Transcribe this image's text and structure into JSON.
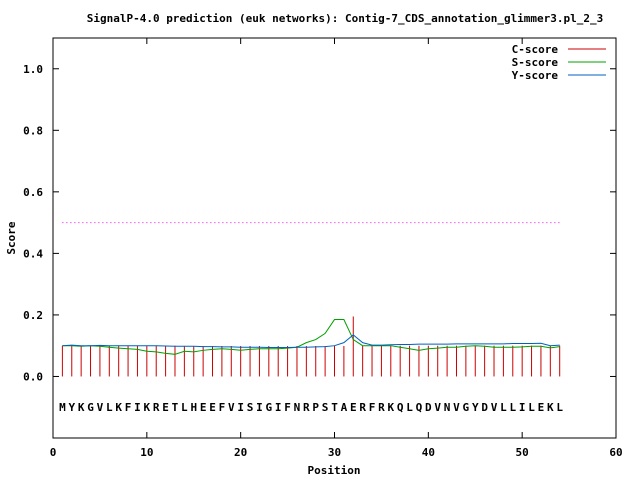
{
  "chart_data": {
    "type": "line",
    "title": "SignalP-4.0 prediction (euk networks): Contig-7_CDS_annotation_glimmer3.pl_2_3",
    "xlabel": "Position",
    "ylabel": "Score",
    "xlim": [
      0,
      60
    ],
    "ylim": [
      -0.2,
      1.1
    ],
    "xticks": [
      0,
      10,
      20,
      30,
      40,
      50,
      60
    ],
    "xtick_labels": [
      "0",
      "10",
      "20",
      "30",
      "40",
      "50",
      "60"
    ],
    "yticks": [
      0.0,
      0.2,
      0.4,
      0.6,
      0.8,
      1.0
    ],
    "ytick_labels": [
      "0.0",
      "0.2",
      "0.4",
      "0.6",
      "0.8",
      "1.0"
    ],
    "legend_position": "top-right",
    "threshold": {
      "value": 0.5,
      "x_range": [
        1,
        54
      ],
      "color": "#ff00ff"
    },
    "sequence": "MYKGVLKFIKRETLHEEFVISIGIFNRPSTAERFRKQLQDVNVGYDVLLILEKL",
    "sequence_y": -0.1,
    "series": [
      {
        "name": "C-score",
        "style": "impulses",
        "color": "#cc0000",
        "x": [
          1,
          2,
          3,
          4,
          5,
          6,
          7,
          8,
          9,
          10,
          11,
          12,
          13,
          14,
          15,
          16,
          17,
          18,
          19,
          20,
          21,
          22,
          23,
          24,
          25,
          26,
          27,
          28,
          29,
          30,
          31,
          32,
          33,
          34,
          35,
          36,
          37,
          38,
          39,
          40,
          41,
          42,
          43,
          44,
          45,
          46,
          47,
          48,
          49,
          50,
          51,
          52,
          53,
          54
        ],
        "values": [
          0.1,
          0.102,
          0.1,
          0.1,
          0.102,
          0.1,
          0.101,
          0.1,
          0.1,
          0.1,
          0.1,
          0.1,
          0.1,
          0.099,
          0.099,
          0.099,
          0.099,
          0.099,
          0.099,
          0.099,
          0.099,
          0.099,
          0.099,
          0.099,
          0.099,
          0.099,
          0.099,
          0.099,
          0.099,
          0.099,
          0.099,
          0.195,
          0.1,
          0.1,
          0.1,
          0.1,
          0.1,
          0.1,
          0.1,
          0.1,
          0.1,
          0.1,
          0.1,
          0.1,
          0.1,
          0.1,
          0.1,
          0.1,
          0.1,
          0.1,
          0.1,
          0.1,
          0.1,
          0.1
        ]
      },
      {
        "name": "S-score",
        "style": "lines",
        "color": "#00a000",
        "x": [
          1,
          2,
          3,
          4,
          5,
          6,
          7,
          8,
          9,
          10,
          11,
          12,
          13,
          14,
          15,
          16,
          17,
          18,
          19,
          20,
          21,
          22,
          23,
          24,
          25,
          26,
          27,
          28,
          29,
          30,
          31,
          32,
          33,
          34,
          35,
          36,
          37,
          38,
          39,
          40,
          41,
          42,
          43,
          44,
          45,
          46,
          47,
          48,
          49,
          50,
          51,
          52,
          53,
          54
        ],
        "values": [
          0.1,
          0.1,
          0.098,
          0.1,
          0.098,
          0.095,
          0.092,
          0.09,
          0.088,
          0.082,
          0.08,
          0.075,
          0.072,
          0.082,
          0.08,
          0.085,
          0.088,
          0.09,
          0.088,
          0.085,
          0.088,
          0.09,
          0.09,
          0.09,
          0.092,
          0.095,
          0.11,
          0.12,
          0.14,
          0.185,
          0.185,
          0.12,
          0.1,
          0.1,
          0.1,
          0.1,
          0.095,
          0.09,
          0.085,
          0.09,
          0.092,
          0.095,
          0.095,
          0.098,
          0.1,
          0.098,
          0.095,
          0.095,
          0.095,
          0.096,
          0.098,
          0.098,
          0.093,
          0.097
        ]
      },
      {
        "name": "Y-score",
        "style": "lines",
        "color": "#0060c0",
        "x": [
          1,
          2,
          3,
          4,
          5,
          6,
          7,
          8,
          9,
          10,
          11,
          12,
          13,
          14,
          15,
          16,
          17,
          18,
          19,
          20,
          21,
          22,
          23,
          24,
          25,
          26,
          27,
          28,
          29,
          30,
          31,
          32,
          33,
          34,
          35,
          36,
          37,
          38,
          39,
          40,
          41,
          42,
          43,
          44,
          45,
          46,
          47,
          48,
          49,
          50,
          51,
          52,
          53,
          54
        ],
        "values": [
          0.1,
          0.102,
          0.1,
          0.1,
          0.101,
          0.1,
          0.1,
          0.1,
          0.1,
          0.1,
          0.1,
          0.099,
          0.098,
          0.098,
          0.098,
          0.097,
          0.097,
          0.096,
          0.096,
          0.095,
          0.095,
          0.095,
          0.094,
          0.094,
          0.094,
          0.095,
          0.095,
          0.096,
          0.097,
          0.1,
          0.11,
          0.135,
          0.11,
          0.102,
          0.102,
          0.103,
          0.104,
          0.104,
          0.105,
          0.105,
          0.105,
          0.105,
          0.106,
          0.106,
          0.106,
          0.106,
          0.106,
          0.106,
          0.107,
          0.107,
          0.107,
          0.108,
          0.1,
          0.102
        ]
      }
    ]
  }
}
